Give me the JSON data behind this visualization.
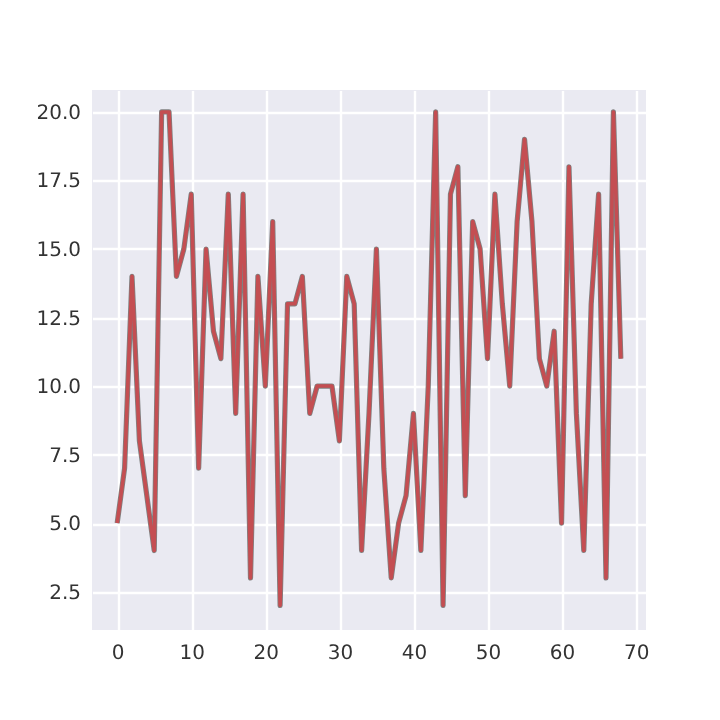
{
  "chart_data": {
    "type": "line",
    "x": [
      0,
      1,
      2,
      3,
      4,
      5,
      6,
      7,
      8,
      9,
      10,
      11,
      12,
      13,
      14,
      15,
      16,
      17,
      18,
      19,
      20,
      21,
      22,
      23,
      24,
      25,
      26,
      27,
      28,
      29,
      30,
      31,
      32,
      33,
      34,
      35,
      36,
      37,
      38,
      39,
      40,
      41,
      42,
      43,
      44,
      45,
      46,
      47,
      48,
      49,
      50,
      51,
      52,
      53,
      54,
      55,
      56,
      57,
      58,
      59,
      60,
      61,
      62,
      63,
      64,
      65,
      66,
      67,
      68
    ],
    "series": [
      {
        "color": "#808080",
        "values": [
          5,
          7,
          14,
          8,
          6,
          4,
          20,
          20,
          14,
          15,
          17,
          7,
          15,
          12,
          11,
          17,
          9,
          17,
          3,
          14,
          10,
          16,
          2,
          13,
          13,
          14,
          9,
          10,
          10,
          10,
          8,
          14,
          13,
          4,
          9,
          15,
          7,
          3,
          5,
          6,
          9,
          4,
          10,
          20,
          2,
          17,
          18,
          6,
          16,
          15,
          11,
          17,
          13,
          10,
          16,
          19,
          16,
          11,
          10,
          12,
          5,
          18,
          9,
          4,
          13,
          17,
          3,
          20,
          11
        ]
      },
      {
        "color": "#c44e52",
        "values": [
          5,
          7,
          14,
          8,
          6,
          4,
          20,
          20,
          14,
          15,
          17,
          7,
          15,
          12,
          11,
          17,
          9,
          17,
          3,
          14,
          10,
          16,
          2,
          13,
          13,
          14,
          9,
          10,
          10,
          10,
          8,
          14,
          13,
          4,
          9,
          15,
          7,
          3,
          5,
          6,
          9,
          4,
          10,
          20,
          2,
          17,
          18,
          6,
          16,
          15,
          11,
          17,
          13,
          10,
          16,
          19,
          16,
          11,
          10,
          12,
          5,
          18,
          9,
          4,
          13,
          17,
          3,
          20,
          11
        ]
      }
    ],
    "xlim": [
      -3.4,
      71.4
    ],
    "xticks": [
      0,
      10,
      20,
      30,
      40,
      50,
      60,
      70
    ],
    "ylim": [
      1.1,
      20.8
    ],
    "yticks": [
      2.5,
      {
        "value": 5,
        "label": "5.0"
      },
      7.5,
      {
        "value": 10,
        "label": "10.0"
      },
      12.5,
      {
        "value": 15,
        "label": "15.0"
      },
      17.5,
      {
        "value": 20,
        "label": "20.0"
      }
    ],
    "grid": true
  }
}
